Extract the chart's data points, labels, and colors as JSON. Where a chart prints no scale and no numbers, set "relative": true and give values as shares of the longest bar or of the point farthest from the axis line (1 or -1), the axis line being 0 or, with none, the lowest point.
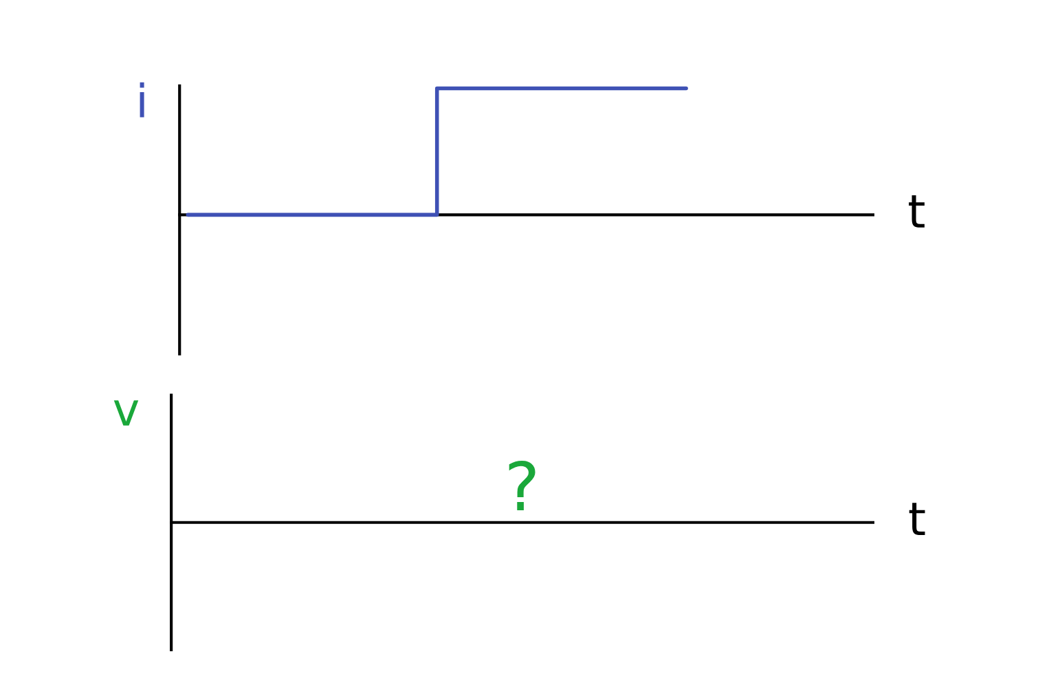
{
  "chart_data": [
    {
      "type": "step",
      "relative": true,
      "xlabel": "t",
      "ylabel": "i",
      "categories": [
        null,
        null,
        null,
        null,
        null,
        null,
        null,
        null,
        null,
        null,
        null,
        null,
        null
      ],
      "series": [
        {
          "color": "#3f51b5",
          "values": [
            0,
            0,
            0,
            0,
            0,
            0,
            1,
            1,
            1,
            1,
            1,
            1,
            1
          ]
        }
      ]
    },
    {
      "type": "other",
      "xlabel": "t",
      "ylabel": "v",
      "annotations": [
        "?"
      ]
    }
  ]
}
